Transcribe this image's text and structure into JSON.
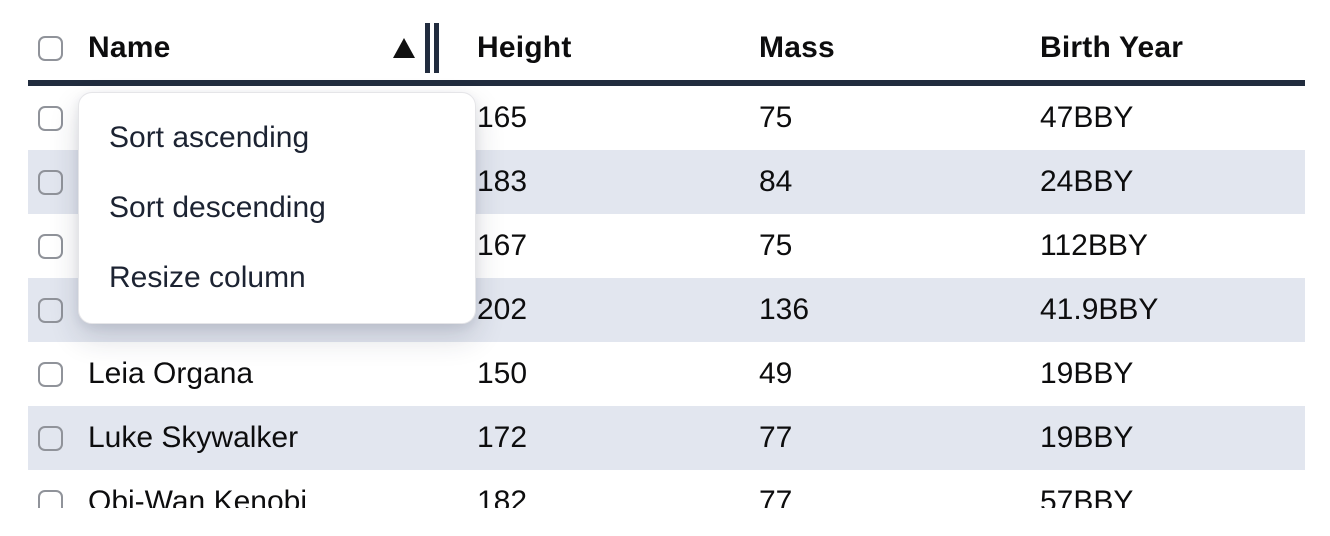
{
  "colors": {
    "header_border": "#212c3e",
    "resize_handle": "#212c3e",
    "row_stripe": "#e2e6ef",
    "checkbox_border": "#90939a",
    "table_text": "#0d0d0e",
    "menu_text": "#1c2332",
    "menu_background": "#ffffff"
  },
  "icons": {
    "sort_ascending_icon": "▲",
    "column_resize_handle": "‖"
  },
  "table": {
    "columns": [
      {
        "id": "name",
        "label": "Name"
      },
      {
        "id": "height",
        "label": "Height"
      },
      {
        "id": "mass",
        "label": "Mass"
      },
      {
        "id": "birth_year",
        "label": "Birth Year"
      }
    ],
    "sort_state": {
      "column": "Name",
      "direction": "ascending"
    },
    "rows": [
      {
        "name": "",
        "height": "165",
        "mass": "75",
        "birth_year": "47BBY"
      },
      {
        "name": "",
        "height": "183",
        "mass": "84",
        "birth_year": "24BBY"
      },
      {
        "name": "",
        "height": "167",
        "mass": "75",
        "birth_year": "112BBY"
      },
      {
        "name": "",
        "height": "202",
        "mass": "136",
        "birth_year": "41.9BBY"
      },
      {
        "name": "Leia Organa",
        "height": "150",
        "mass": "49",
        "birth_year": "19BBY"
      },
      {
        "name": "Luke Skywalker",
        "height": "172",
        "mass": "77",
        "birth_year": "19BBY"
      },
      {
        "name": "Obi-Wan Kenobi",
        "height": "182",
        "mass": "77",
        "birth_year": "57BBY"
      }
    ]
  },
  "context_menu": {
    "items": [
      {
        "label": "Sort ascending"
      },
      {
        "label": "Sort descending"
      },
      {
        "label": "Resize column"
      }
    ]
  }
}
